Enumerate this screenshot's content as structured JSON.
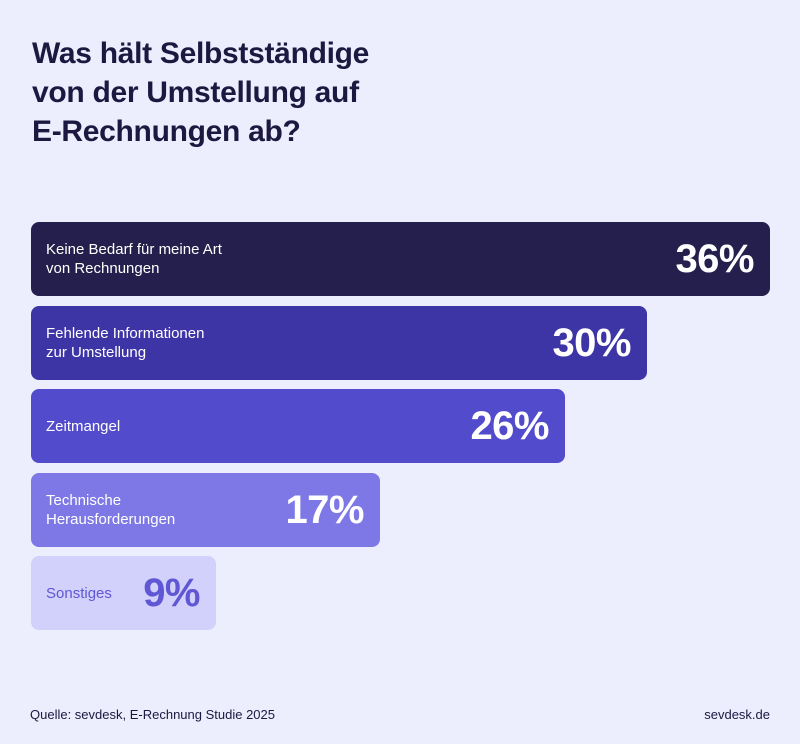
{
  "title": "Was hält Selbstständige\nvon der Umstellung auf\nE-Rechnungen ab?",
  "chart_data": {
    "type": "bar",
    "orientation": "horizontal",
    "title": "Was hält Selbstständige von der Umstellung auf E-Rechnungen ab?",
    "categories": [
      "Keine Bedarf für meine Art\nvon Rechnungen",
      "Fehlende Informationen\nzur Umstellung",
      "Zeitmangel",
      "Technische\nHerausforderungen",
      "Sonstiges"
    ],
    "values": [
      36,
      30,
      26,
      17,
      9
    ],
    "value_labels": [
      "36%",
      "30%",
      "26%",
      "17%",
      "9%"
    ],
    "colors": [
      "#241f4c",
      "#3d34a6",
      "#524bcc",
      "#7d78e6",
      "#d2d1fb"
    ],
    "text_colors": [
      "#ffffff",
      "#ffffff",
      "#ffffff",
      "#ffffff",
      "#5f57d4"
    ],
    "unit": "%",
    "grid": false
  },
  "footer": {
    "source": "Quelle: sevdesk, E-Rechnung Studie 2025",
    "brand": "sevdesk.de"
  }
}
